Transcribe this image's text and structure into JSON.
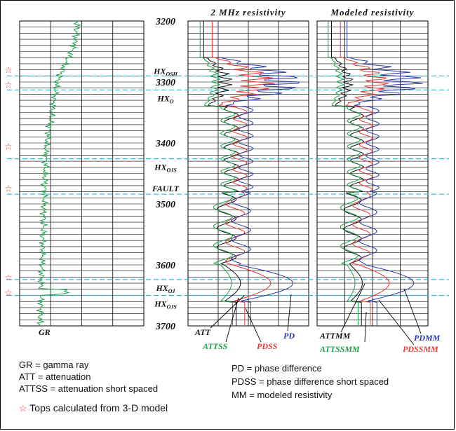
{
  "chart_data": {
    "type": "line",
    "tracks": [
      {
        "title": "",
        "series": [
          {
            "name": "GR",
            "color": "#1aa14a",
            "x": [
              70,
              72,
              68,
              74,
              66,
              60,
              58,
              54,
              50,
              48,
              46,
              44,
              42,
              40,
              38,
              40,
              38,
              36,
              34,
              36,
              34,
              32,
              30,
              32,
              30,
              28,
              30,
              28,
              26,
              28,
              26,
              28,
              26,
              30,
              28,
              32,
              28,
              30,
              28,
              26,
              28,
              26,
              30,
              28,
              60,
              32,
              28,
              26,
              24,
              26,
              24,
              26,
              24,
              26,
              24,
              26,
              24,
              26,
              24,
              26,
              24,
              30,
              26,
              24,
              22,
              24,
              26,
              24
            ],
            "y": [
              3200,
              3210,
              3220,
              3230,
              3240,
              3250,
              3260,
              3270,
              3280,
              3290,
              3300,
              3310,
              3320,
              3330,
              3340,
              3350,
              3360,
              3370,
              3380,
              3390,
              3400,
              3410,
              3420,
              3430,
              3440,
              3450,
              3460,
              3470,
              3480,
              3490,
              3500,
              3510,
              3520,
              3530,
              3540,
              3550,
              3560,
              3570,
              3580,
              3590,
              3600,
              3610,
              3620,
              3630,
              3640,
              3645,
              3650,
              3660,
              3670,
              3680,
              3690,
              3700,
              3700,
              3700,
              3700,
              3700,
              3700,
              3700,
              3700,
              3700,
              3700,
              3700,
              3700,
              3700,
              3700,
              3700,
              3700,
              3700
            ]
          }
        ]
      },
      {
        "title": "2 MHz resistivity",
        "series": [
          {
            "name": "ATT",
            "color": "#111111"
          },
          {
            "name": "ATTSS",
            "color": "#1aa14a"
          },
          {
            "name": "PDSS",
            "color": "#e53935"
          },
          {
            "name": "PD",
            "color": "#2b3aa8"
          }
        ]
      },
      {
        "title": "Modeled resistivity",
        "series": [
          {
            "name": "ATTMM",
            "color": "#111111"
          },
          {
            "name": "ATTSSMM",
            "color": "#1aa14a"
          },
          {
            "name": "PDSSMM",
            "color": "#e53935"
          },
          {
            "name": "PDMM",
            "color": "#2b3aa8"
          }
        ]
      }
    ],
    "depth_ticks": [
      "3200",
      "3300",
      "3400",
      "3500",
      "3600",
      "3700"
    ],
    "ylim": [
      3200,
      3700
    ],
    "tops": [
      {
        "label": "HX",
        "sub": "OSH",
        "depth": 3290
      },
      {
        "label": "HX",
        "sub": "O",
        "depth": 3313
      },
      {
        "label": "HX",
        "sub": "OJS",
        "depth": 3426
      },
      {
        "label": "FAULT",
        "sub": "",
        "depth": 3484
      },
      {
        "label": "HX",
        "sub": "OJ",
        "depth": 3624
      },
      {
        "label": "HX",
        "sub": "OJS",
        "depth": 3650
      }
    ],
    "star_depths": [
      3280,
      3304,
      3405,
      3474,
      3620,
      3645
    ]
  },
  "legend": {
    "gr": "GR = gamma ray",
    "att": "ATT = attenuation",
    "attss": "ATTSS = attenuation short spaced",
    "stars": "Tops calculated from 3-D model",
    "pd": "PD = phase difference",
    "pdss": "PDSS = phase difference short spaced",
    "mm": "MM = modeled resistivity"
  },
  "colors": {
    "tops_line": "#2bb5d8",
    "star": "#e53935"
  }
}
